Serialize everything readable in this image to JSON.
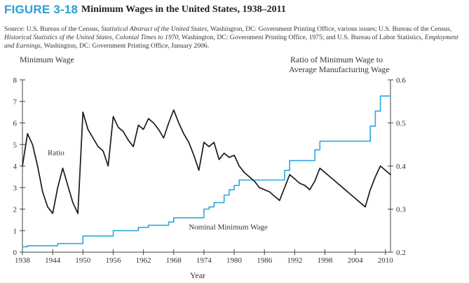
{
  "figure": {
    "label": "FIGURE 3-18",
    "title": "Minimum Wages in the United States, 1938–2011",
    "source_parts": [
      {
        "t": "Source: U.S. Bureau of the Census, ",
        "i": false
      },
      {
        "t": "Statistical Abstract of the United States",
        "i": true
      },
      {
        "t": ", Washington, DC: Government Printing Office, various issues; U.S. Bureau of the Census, ",
        "i": false
      },
      {
        "t": "Historical Statistics of the United States, Colonial Times to 1970",
        "i": true
      },
      {
        "t": ", Washington, DC: Government Printing Office, 1975; and U.S. Bureau of Labor Statistics, ",
        "i": false
      },
      {
        "t": "Employment and Earnings",
        "i": true
      },
      {
        "t": ", Washington, DC: Government Printing Office, January 2006.",
        "i": false
      }
    ]
  },
  "chart_data": {
    "type": "line",
    "xlabel": "Year",
    "ylabel_left": "Minimum Wage",
    "ylabel_right_lines": [
      "Ratio of Minimum Wage to",
      "Average Manufacturing Wage"
    ],
    "xlim": [
      1938,
      2011
    ],
    "ylim_left": [
      0,
      8
    ],
    "ylim_right": [
      0.2,
      0.6
    ],
    "x_ticks": [
      1938,
      1944,
      1950,
      1956,
      1962,
      1968,
      1974,
      1980,
      1986,
      1992,
      1998,
      2004,
      2010
    ],
    "y_ticks_left": [
      0,
      1,
      2,
      3,
      4,
      5,
      6,
      7,
      8
    ],
    "y_ticks_right": [
      0.2,
      0.3,
      0.4,
      0.5,
      0.6
    ],
    "grid": false,
    "colors": {
      "nominal": "#29a8e0",
      "ratio": "#1a1a1a",
      "axis": "#444444"
    },
    "series": [
      {
        "name": "Nominal Minimum Wage",
        "axis": "left",
        "step": true,
        "points": [
          [
            1938,
            0.25
          ],
          [
            1939,
            0.3
          ],
          [
            1945,
            0.4
          ],
          [
            1949,
            0.4
          ],
          [
            1950,
            0.75
          ],
          [
            1955,
            0.75
          ],
          [
            1956,
            1.0
          ],
          [
            1960,
            1.0
          ],
          [
            1961,
            1.15
          ],
          [
            1962,
            1.15
          ],
          [
            1963,
            1.25
          ],
          [
            1966,
            1.25
          ],
          [
            1967,
            1.4
          ],
          [
            1968,
            1.6
          ],
          [
            1973,
            1.6
          ],
          [
            1974,
            2.0
          ],
          [
            1975,
            2.1
          ],
          [
            1976,
            2.3
          ],
          [
            1977,
            2.3
          ],
          [
            1978,
            2.65
          ],
          [
            1979,
            2.9
          ],
          [
            1980,
            3.1
          ],
          [
            1981,
            3.35
          ],
          [
            1989,
            3.35
          ],
          [
            1990,
            3.8
          ],
          [
            1991,
            4.25
          ],
          [
            1995,
            4.25
          ],
          [
            1996,
            4.75
          ],
          [
            1997,
            5.15
          ],
          [
            2006,
            5.15
          ],
          [
            2007,
            5.85
          ],
          [
            2008,
            6.55
          ],
          [
            2009,
            7.25
          ],
          [
            2011,
            7.25
          ]
        ]
      },
      {
        "name": "Ratio",
        "axis": "right",
        "step": false,
        "points": [
          [
            1938,
            0.4
          ],
          [
            1939,
            0.475
          ],
          [
            1940,
            0.45
          ],
          [
            1941,
            0.4
          ],
          [
            1942,
            0.34
          ],
          [
            1943,
            0.305
          ],
          [
            1944,
            0.29
          ],
          [
            1945,
            0.35
          ],
          [
            1946,
            0.395
          ],
          [
            1947,
            0.355
          ],
          [
            1948,
            0.315
          ],
          [
            1949,
            0.29
          ],
          [
            1950,
            0.525
          ],
          [
            1951,
            0.485
          ],
          [
            1952,
            0.465
          ],
          [
            1953,
            0.445
          ],
          [
            1954,
            0.435
          ],
          [
            1955,
            0.4
          ],
          [
            1956,
            0.515
          ],
          [
            1957,
            0.49
          ],
          [
            1958,
            0.48
          ],
          [
            1959,
            0.46
          ],
          [
            1960,
            0.445
          ],
          [
            1961,
            0.495
          ],
          [
            1962,
            0.485
          ],
          [
            1963,
            0.51
          ],
          [
            1964,
            0.5
          ],
          [
            1965,
            0.485
          ],
          [
            1966,
            0.465
          ],
          [
            1967,
            0.5
          ],
          [
            1968,
            0.53
          ],
          [
            1969,
            0.5
          ],
          [
            1970,
            0.475
          ],
          [
            1971,
            0.455
          ],
          [
            1972,
            0.425
          ],
          [
            1973,
            0.39
          ],
          [
            1974,
            0.455
          ],
          [
            1975,
            0.445
          ],
          [
            1976,
            0.455
          ],
          [
            1977,
            0.415
          ],
          [
            1978,
            0.43
          ],
          [
            1979,
            0.42
          ],
          [
            1980,
            0.425
          ],
          [
            1981,
            0.4
          ],
          [
            1982,
            0.385
          ],
          [
            1983,
            0.375
          ],
          [
            1984,
            0.365
          ],
          [
            1985,
            0.35
          ],
          [
            1986,
            0.345
          ],
          [
            1987,
            0.34
          ],
          [
            1988,
            0.33
          ],
          [
            1989,
            0.32
          ],
          [
            1990,
            0.35
          ],
          [
            1991,
            0.38
          ],
          [
            1992,
            0.37
          ],
          [
            1993,
            0.36
          ],
          [
            1994,
            0.355
          ],
          [
            1995,
            0.345
          ],
          [
            1996,
            0.365
          ],
          [
            1997,
            0.395
          ],
          [
            1998,
            0.385
          ],
          [
            1999,
            0.375
          ],
          [
            2000,
            0.365
          ],
          [
            2001,
            0.355
          ],
          [
            2002,
            0.345
          ],
          [
            2003,
            0.335
          ],
          [
            2004,
            0.325
          ],
          [
            2005,
            0.315
          ],
          [
            2006,
            0.305
          ],
          [
            2007,
            0.345
          ],
          [
            2008,
            0.375
          ],
          [
            2009,
            0.4
          ],
          [
            2010,
            0.39
          ],
          [
            2011,
            0.38
          ]
        ]
      }
    ],
    "annotations": [
      {
        "text": "Ratio",
        "x": 1943,
        "y": 4.5,
        "axis": "left"
      },
      {
        "text": "Nominal Minimum Wage",
        "x": 1971,
        "y": 1.05,
        "axis": "left"
      }
    ]
  }
}
